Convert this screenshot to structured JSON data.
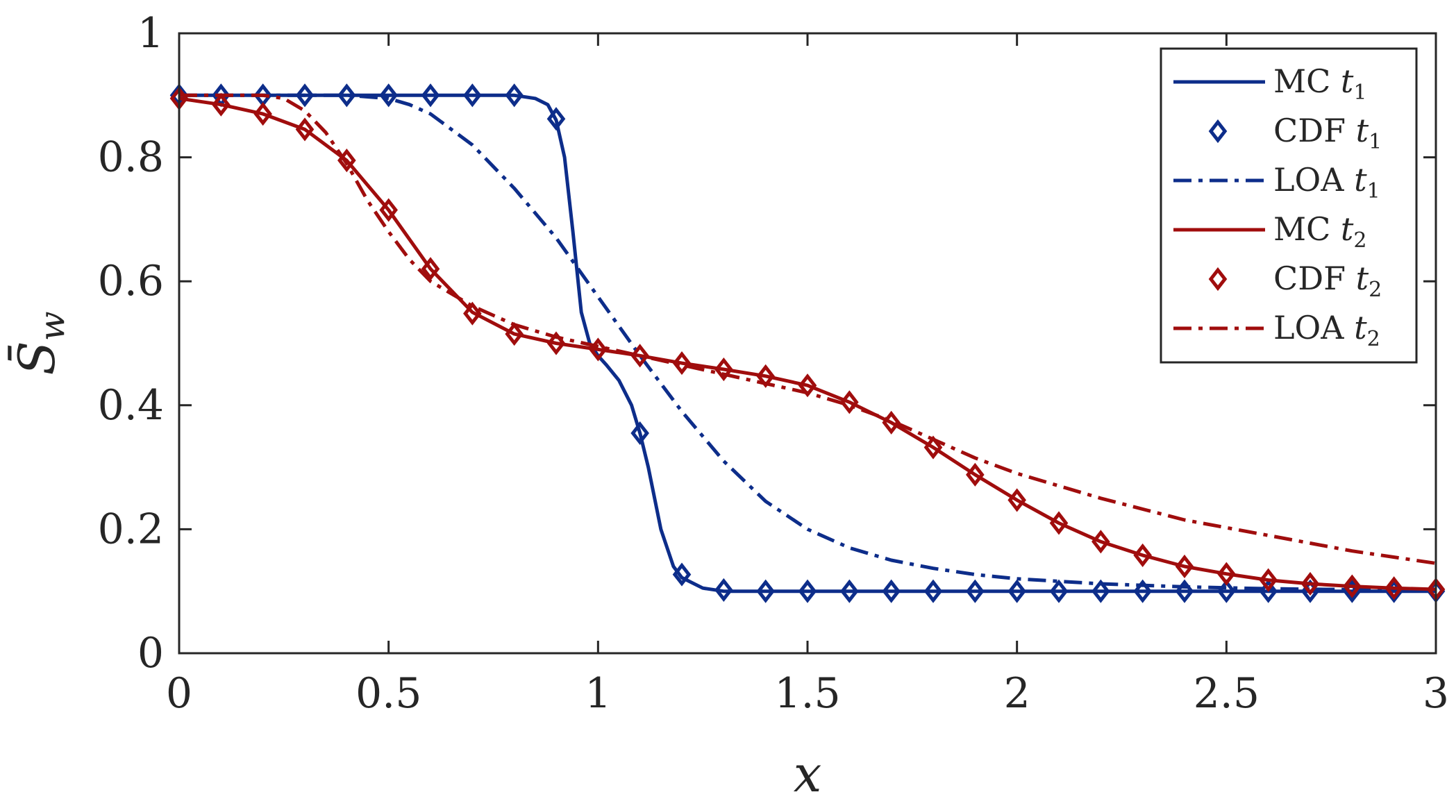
{
  "chart_data": {
    "type": "line",
    "xlabel": "x",
    "ylabel": "S̄",
    "ylabel_subscript": "w",
    "xlim": [
      0,
      3
    ],
    "ylim": [
      0,
      1
    ],
    "xticks": [
      0,
      0.5,
      1,
      1.5,
      2,
      2.5,
      3
    ],
    "xtick_labels": [
      "0",
      "0.5",
      "1",
      "1.5",
      "2",
      "2.5",
      "3"
    ],
    "yticks": [
      0,
      0.2,
      0.4,
      0.6,
      0.8,
      1
    ],
    "ytick_labels": [
      "0",
      "0.2",
      "0.4",
      "0.6",
      "0.8",
      "1"
    ],
    "grid": false,
    "legend_position": "top-right",
    "series": [
      {
        "name": "MC",
        "name_sub": "1",
        "time": "t",
        "style": "solid",
        "color": "#0d2d8a",
        "x": [
          0,
          0.1,
          0.2,
          0.3,
          0.4,
          0.5,
          0.6,
          0.7,
          0.75,
          0.8,
          0.85,
          0.88,
          0.9,
          0.92,
          0.94,
          0.96,
          0.98,
          1.0,
          1.02,
          1.05,
          1.08,
          1.1,
          1.12,
          1.15,
          1.18,
          1.2,
          1.25,
          1.3,
          1.4,
          1.6,
          2.0,
          2.5,
          3.0
        ],
        "y": [
          0.9,
          0.9,
          0.9,
          0.9,
          0.9,
          0.9,
          0.9,
          0.9,
          0.9,
          0.9,
          0.895,
          0.885,
          0.86,
          0.8,
          0.68,
          0.55,
          0.5,
          0.48,
          0.465,
          0.44,
          0.4,
          0.355,
          0.3,
          0.2,
          0.14,
          0.122,
          0.105,
          0.1,
          0.1,
          0.1,
          0.1,
          0.1,
          0.1
        ]
      },
      {
        "name": "CDF",
        "name_sub": "1",
        "time": "t",
        "style": "markers",
        "color": "#0d2d8a",
        "x": [
          0,
          0.1,
          0.2,
          0.3,
          0.4,
          0.5,
          0.6,
          0.7,
          0.8,
          0.9,
          1.1,
          1.2,
          1.3,
          1.4,
          1.5,
          1.6,
          1.7,
          1.8,
          1.9,
          2.0,
          2.1,
          2.2,
          2.3,
          2.4,
          2.5,
          2.6,
          2.7,
          2.8,
          2.9,
          3.0
        ],
        "y": [
          0.9,
          0.9,
          0.9,
          0.9,
          0.9,
          0.9,
          0.9,
          0.9,
          0.9,
          0.862,
          0.355,
          0.127,
          0.102,
          0.1,
          0.1,
          0.1,
          0.1,
          0.1,
          0.1,
          0.1,
          0.1,
          0.1,
          0.1,
          0.1,
          0.1,
          0.1,
          0.1,
          0.1,
          0.1,
          0.1
        ]
      },
      {
        "name": "LOA",
        "name_sub": "1",
        "time": "t",
        "style": "dashdot",
        "color": "#0d2d8a",
        "x": [
          0,
          0.2,
          0.4,
          0.5,
          0.55,
          0.6,
          0.7,
          0.8,
          0.9,
          1.0,
          1.1,
          1.2,
          1.3,
          1.4,
          1.5,
          1.6,
          1.7,
          1.8,
          1.9,
          2.0,
          2.2,
          2.4,
          2.6,
          3.0
        ],
        "y": [
          0.9,
          0.9,
          0.9,
          0.895,
          0.885,
          0.87,
          0.82,
          0.75,
          0.67,
          0.575,
          0.48,
          0.39,
          0.31,
          0.245,
          0.2,
          0.17,
          0.15,
          0.137,
          0.127,
          0.12,
          0.112,
          0.107,
          0.104,
          0.101
        ]
      },
      {
        "name": "MC",
        "name_sub": "2",
        "time": "t",
        "style": "solid",
        "color": "#a00d0d",
        "x": [
          0,
          0.1,
          0.2,
          0.3,
          0.4,
          0.5,
          0.6,
          0.7,
          0.8,
          0.9,
          1.0,
          1.1,
          1.2,
          1.3,
          1.4,
          1.5,
          1.6,
          1.7,
          1.8,
          1.9,
          2.0,
          2.1,
          2.2,
          2.3,
          2.4,
          2.5,
          2.6,
          2.7,
          2.8,
          2.9,
          3.0
        ],
        "y": [
          0.895,
          0.885,
          0.87,
          0.845,
          0.795,
          0.715,
          0.62,
          0.55,
          0.515,
          0.5,
          0.49,
          0.48,
          0.468,
          0.458,
          0.447,
          0.432,
          0.405,
          0.372,
          0.332,
          0.288,
          0.247,
          0.21,
          0.18,
          0.158,
          0.14,
          0.128,
          0.118,
          0.112,
          0.108,
          0.105,
          0.103
        ]
      },
      {
        "name": "CDF",
        "name_sub": "2",
        "time": "t",
        "style": "markers",
        "color": "#a00d0d",
        "x": [
          0,
          0.1,
          0.2,
          0.3,
          0.4,
          0.5,
          0.6,
          0.7,
          0.8,
          0.9,
          1.0,
          1.1,
          1.2,
          1.3,
          1.4,
          1.5,
          1.6,
          1.7,
          1.8,
          1.9,
          2.0,
          2.1,
          2.2,
          2.3,
          2.4,
          2.5,
          2.6,
          2.7,
          2.8,
          2.9,
          3.0
        ],
        "y": [
          0.895,
          0.885,
          0.87,
          0.845,
          0.795,
          0.715,
          0.62,
          0.548,
          0.515,
          0.5,
          0.49,
          0.48,
          0.468,
          0.458,
          0.447,
          0.432,
          0.405,
          0.372,
          0.332,
          0.288,
          0.247,
          0.21,
          0.18,
          0.158,
          0.14,
          0.128,
          0.118,
          0.112,
          0.108,
          0.105,
          0.103
        ]
      },
      {
        "name": "LOA",
        "name_sub": "2",
        "time": "t",
        "style": "dashdot",
        "color": "#a00d0d",
        "x": [
          0,
          0.1,
          0.2,
          0.25,
          0.3,
          0.35,
          0.4,
          0.45,
          0.5,
          0.55,
          0.6,
          0.7,
          0.8,
          0.9,
          1.0,
          1.1,
          1.2,
          1.3,
          1.4,
          1.5,
          1.6,
          1.7,
          1.8,
          1.9,
          2.0,
          2.2,
          2.4,
          2.6,
          2.8,
          3.0
        ],
        "y": [
          0.9,
          0.9,
          0.9,
          0.895,
          0.875,
          0.84,
          0.79,
          0.73,
          0.68,
          0.635,
          0.6,
          0.56,
          0.53,
          0.51,
          0.495,
          0.48,
          0.465,
          0.45,
          0.435,
          0.42,
          0.4,
          0.375,
          0.345,
          0.315,
          0.29,
          0.25,
          0.215,
          0.19,
          0.165,
          0.145
        ]
      }
    ]
  }
}
